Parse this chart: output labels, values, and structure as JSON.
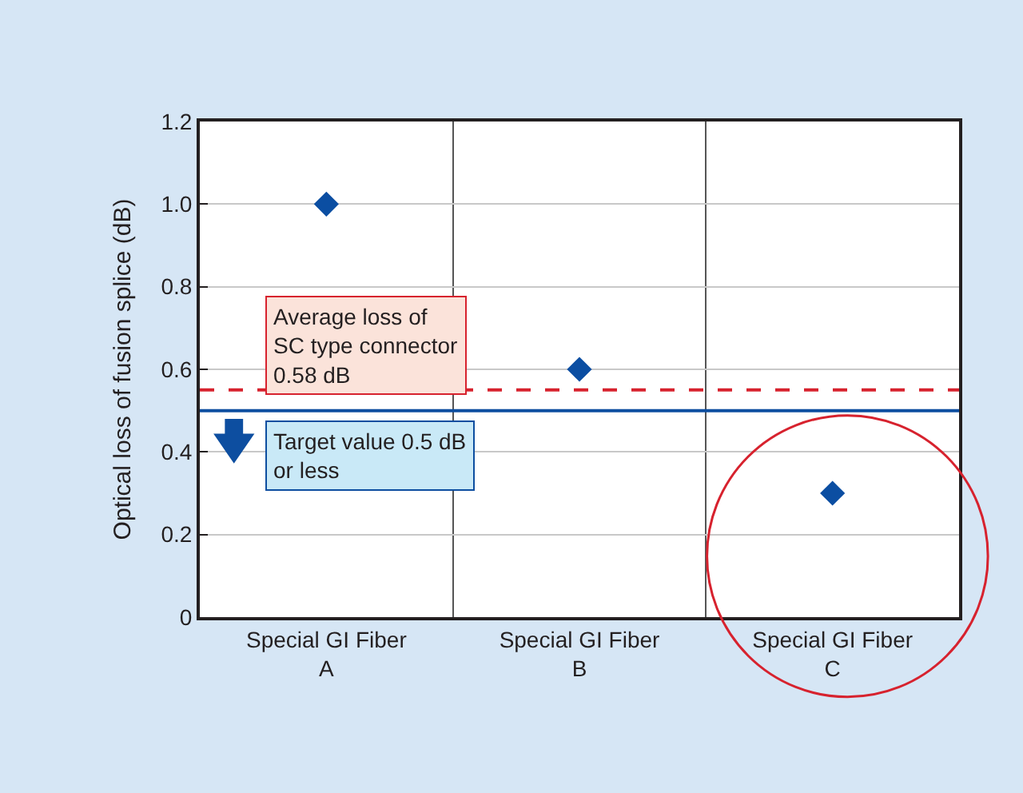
{
  "chart_data": {
    "type": "scatter",
    "ylabel": "Optical loss of fusion splice (dB)",
    "categories": [
      "Special GI Fiber\nA",
      "Special GI Fiber\nB",
      "Special GI Fiber\nC"
    ],
    "values": [
      1.0,
      0.6,
      0.3
    ],
    "color": "#0b4ea2",
    "marker": "diamond",
    "ylim": [
      0,
      1.2
    ],
    "yticks": [
      0,
      0.2,
      0.4,
      0.6,
      0.8,
      {
        "value": 1.0,
        "label": "1.0"
      },
      1.2
    ],
    "grid": true,
    "ref_lines": [
      {
        "axis": "y",
        "value": 0.55,
        "label": "Average loss of\nSC type connector\n0.58 dB",
        "color": "#d7222e",
        "line_style": "dashed"
      },
      {
        "axis": "y",
        "value": 0.5,
        "label": "Target value 0.5 dB\nor less",
        "color": "#0d4ea0",
        "line_style": "solid"
      }
    ]
  }
}
